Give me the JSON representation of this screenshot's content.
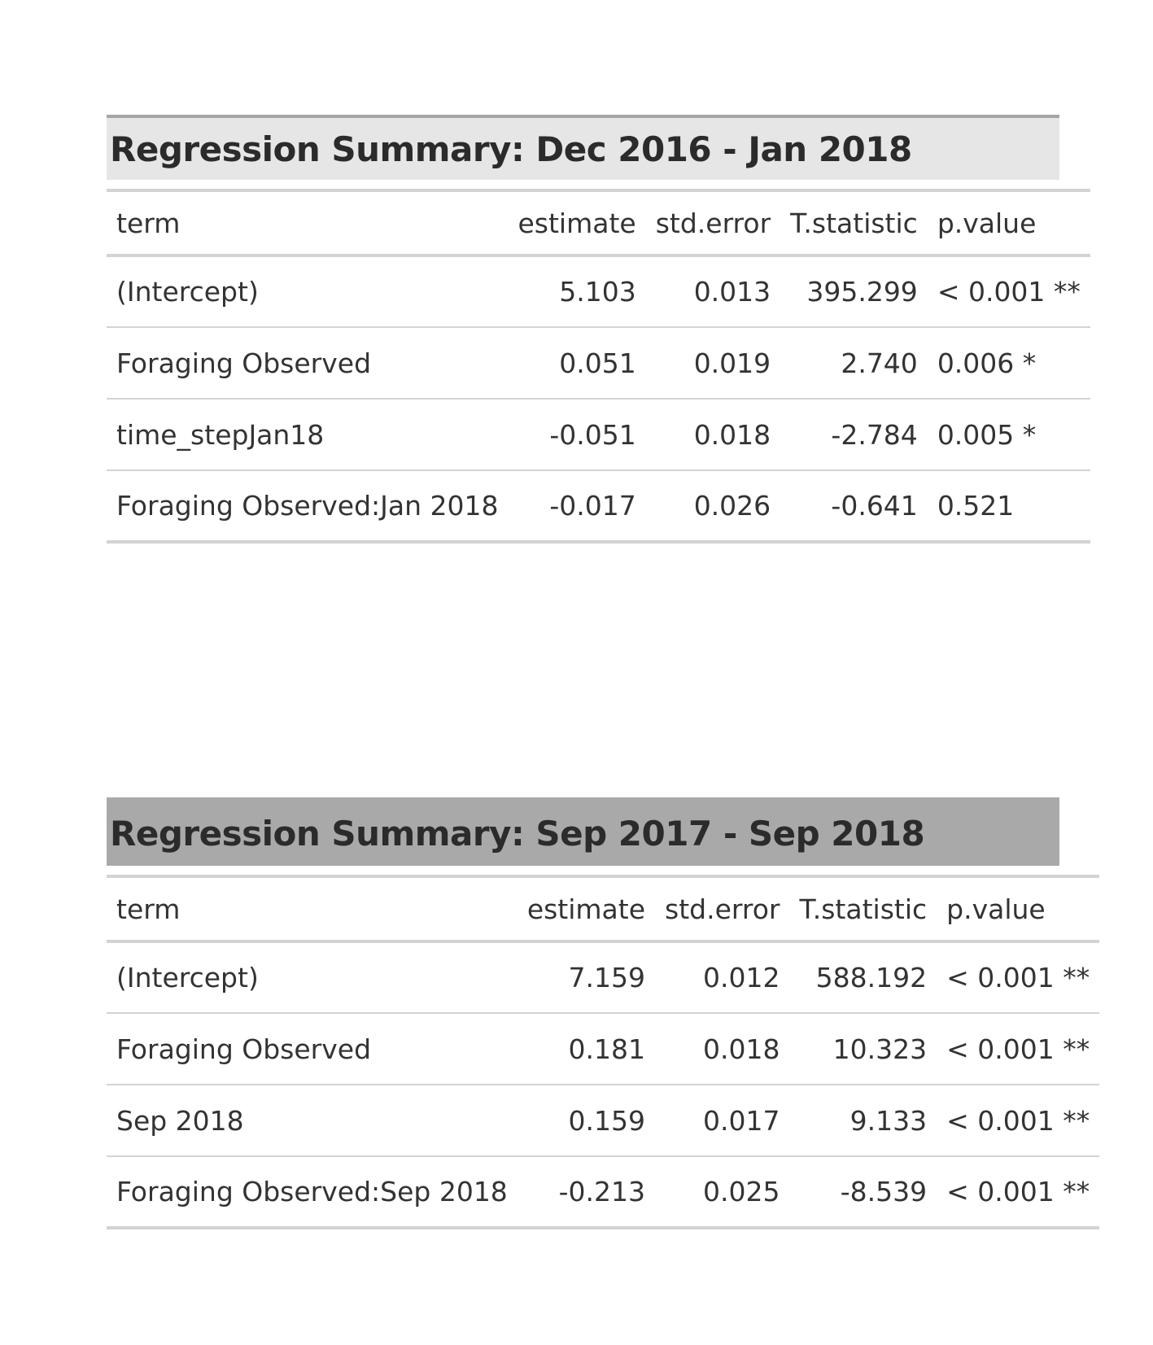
{
  "tables": [
    {
      "title": "Regression Summary: Dec 2016 - Jan 2018",
      "headers": [
        "term",
        "estimate",
        "std.error",
        "T.statistic",
        "p.value"
      ],
      "rows": [
        [
          "(Intercept)",
          "5.103",
          "0.013",
          "395.299",
          "< 0.001 **"
        ],
        [
          "Foraging Observed",
          "0.051",
          "0.019",
          "2.740",
          "0.006 *"
        ],
        [
          "time_stepJan18",
          "-0.051",
          "0.018",
          "-2.784",
          "0.005 *"
        ],
        [
          "Foraging Observed:Jan 2018",
          "-0.017",
          "0.026",
          "-0.641",
          "0.521"
        ]
      ]
    },
    {
      "title": "Regression Summary: Sep 2017 - Sep 2018",
      "headers": [
        "term",
        "estimate",
        "std.error",
        "T.statistic",
        "p.value"
      ],
      "rows": [
        [
          "(Intercept)",
          "7.159",
          "0.012",
          "588.192",
          "< 0.001 **"
        ],
        [
          "Foraging Observed",
          "0.181",
          "0.018",
          "10.323",
          "< 0.001 **"
        ],
        [
          "Sep 2018",
          "0.159",
          "0.017",
          "9.133",
          "< 0.001 **"
        ],
        [
          "Foraging Observed:Sep 2018",
          "-0.213",
          "0.025",
          "-8.539",
          "< 0.001 **"
        ]
      ]
    }
  ]
}
